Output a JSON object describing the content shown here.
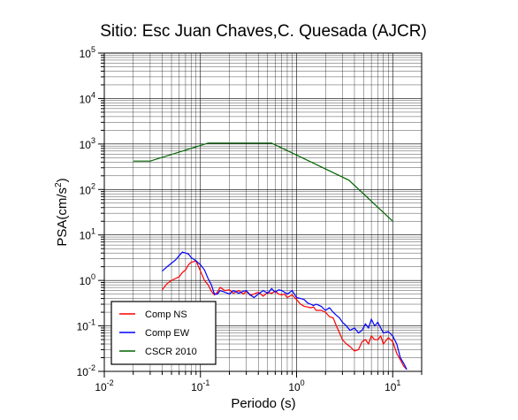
{
  "chart_data": {
    "type": "line",
    "title": "Sitio: Esc Juan Chaves,C. Quesada (AJCR)",
    "xlabel": "Periodo (s)",
    "ylabel_main": "PSA(cm/s",
    "ylabel_sup": "2",
    "ylabel_close": ")",
    "x_scale": "log",
    "y_scale": "log",
    "xlim": [
      0.01,
      20
    ],
    "ylim": [
      0.01,
      100000
    ],
    "grid": true,
    "legend_position": "bottom-left",
    "x_ticks": [
      {
        "value": 0.01,
        "base": "10",
        "exp": "-2"
      },
      {
        "value": 0.1,
        "base": "10",
        "exp": "-1"
      },
      {
        "value": 1,
        "base": "10",
        "exp": "0"
      },
      {
        "value": 10,
        "base": "10",
        "exp": "1"
      }
    ],
    "y_ticks": [
      {
        "value": 0.01,
        "base": "10",
        "exp": "-2"
      },
      {
        "value": 0.1,
        "base": "10",
        "exp": "-1"
      },
      {
        "value": 1,
        "base": "10",
        "exp": "0"
      },
      {
        "value": 10,
        "base": "10",
        "exp": "1"
      },
      {
        "value": 100,
        "base": "10",
        "exp": "2"
      },
      {
        "value": 1000,
        "base": "10",
        "exp": "3"
      },
      {
        "value": 10000,
        "base": "10",
        "exp": "4"
      },
      {
        "value": 100000,
        "base": "10",
        "exp": "5"
      }
    ],
    "series": [
      {
        "name": "Comp NS",
        "color": "#ff0000",
        "x": [
          0.04,
          0.045,
          0.05,
          0.055,
          0.06,
          0.065,
          0.07,
          0.075,
          0.08,
          0.09,
          0.1,
          0.11,
          0.12,
          0.13,
          0.14,
          0.15,
          0.16,
          0.18,
          0.2,
          0.22,
          0.25,
          0.28,
          0.3,
          0.33,
          0.36,
          0.4,
          0.45,
          0.5,
          0.55,
          0.6,
          0.65,
          0.7,
          0.75,
          0.8,
          0.9,
          1.0,
          1.1,
          1.2,
          1.3,
          1.4,
          1.5,
          1.6,
          1.8,
          2.0,
          2.2,
          2.4,
          2.6,
          2.8,
          3.0,
          3.3,
          3.6,
          4.0,
          4.4,
          4.8,
          5.2,
          5.6,
          6.0,
          6.5,
          7.0,
          7.5,
          8.0,
          9.0,
          10.0,
          11.0,
          12.0,
          13.0,
          14.0
        ],
        "y": [
          0.62,
          0.85,
          1.0,
          1.1,
          1.2,
          1.5,
          1.7,
          2.2,
          2.5,
          2.7,
          1.6,
          1.0,
          0.8,
          0.58,
          0.48,
          0.55,
          0.7,
          0.6,
          0.62,
          0.52,
          0.6,
          0.5,
          0.58,
          0.47,
          0.5,
          0.55,
          0.45,
          0.55,
          0.52,
          0.58,
          0.5,
          0.48,
          0.5,
          0.42,
          0.48,
          0.38,
          0.3,
          0.27,
          0.26,
          0.25,
          0.26,
          0.22,
          0.22,
          0.2,
          0.16,
          0.15,
          0.1,
          0.07,
          0.05,
          0.04,
          0.035,
          0.028,
          0.03,
          0.045,
          0.05,
          0.04,
          0.06,
          0.05,
          0.05,
          0.06,
          0.04,
          0.055,
          0.045,
          0.025,
          0.018,
          0.013,
          0.011
        ]
      },
      {
        "name": "Comp EW",
        "color": "#0000ff",
        "x": [
          0.04,
          0.045,
          0.05,
          0.055,
          0.06,
          0.065,
          0.07,
          0.075,
          0.08,
          0.09,
          0.1,
          0.11,
          0.12,
          0.13,
          0.14,
          0.15,
          0.16,
          0.18,
          0.2,
          0.22,
          0.25,
          0.28,
          0.3,
          0.33,
          0.36,
          0.4,
          0.45,
          0.5,
          0.55,
          0.6,
          0.65,
          0.7,
          0.75,
          0.8,
          0.9,
          1.0,
          1.1,
          1.2,
          1.3,
          1.4,
          1.5,
          1.6,
          1.8,
          2.0,
          2.2,
          2.4,
          2.6,
          2.8,
          3.0,
          3.3,
          3.6,
          4.0,
          4.4,
          4.8,
          5.2,
          5.6,
          6.0,
          6.5,
          7.0,
          7.5,
          8.0,
          9.0,
          10.0,
          11.0,
          12.0,
          13.0,
          14.0
        ],
        "y": [
          1.6,
          2.0,
          2.4,
          2.8,
          3.5,
          4.2,
          4.0,
          3.8,
          3.2,
          2.7,
          2.2,
          1.7,
          1.1,
          0.8,
          0.5,
          0.5,
          0.6,
          0.55,
          0.5,
          0.6,
          0.52,
          0.58,
          0.6,
          0.48,
          0.42,
          0.5,
          0.6,
          0.52,
          0.66,
          0.55,
          0.62,
          0.6,
          0.55,
          0.5,
          0.6,
          0.42,
          0.4,
          0.38,
          0.32,
          0.3,
          0.28,
          0.3,
          0.27,
          0.22,
          0.25,
          0.2,
          0.17,
          0.15,
          0.12,
          0.1,
          0.08,
          0.09,
          0.07,
          0.08,
          0.11,
          0.09,
          0.14,
          0.1,
          0.12,
          0.09,
          0.07,
          0.075,
          0.06,
          0.04,
          0.02,
          0.015,
          0.011
        ]
      },
      {
        "name": "CSCR 2010",
        "color": "#006400",
        "x": [
          0.02,
          0.03,
          0.12,
          0.55,
          3.5,
          10.0
        ],
        "y": [
          420,
          420,
          1050,
          1050,
          160,
          20
        ]
      }
    ]
  }
}
